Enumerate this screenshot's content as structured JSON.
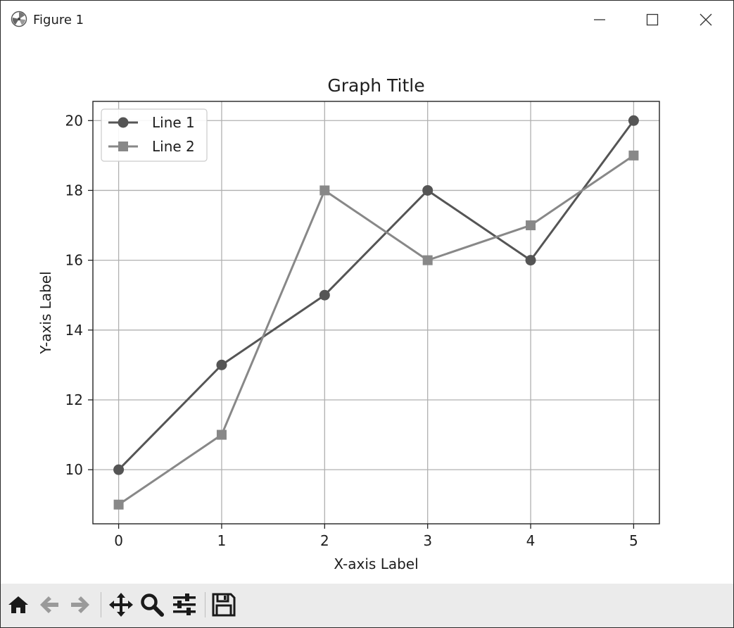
{
  "window": {
    "title": "Figure 1"
  },
  "toolbar": {
    "buttons": [
      {
        "name": "home-button",
        "icon": "home-icon"
      },
      {
        "name": "back-button",
        "icon": "arrow-left-icon"
      },
      {
        "name": "forward-button",
        "icon": "arrow-right-icon"
      },
      {
        "name": "pan-button",
        "icon": "move-arrows-icon"
      },
      {
        "name": "zoom-button",
        "icon": "magnifier-icon"
      },
      {
        "name": "configure-subplots-button",
        "icon": "sliders-icon"
      },
      {
        "name": "save-button",
        "icon": "floppy-disk-icon"
      }
    ]
  },
  "chart_data": {
    "type": "line",
    "title": "Graph Title",
    "xlabel": "X-axis Label",
    "ylabel": "Y-axis Label",
    "x": [
      0,
      1,
      2,
      3,
      4,
      5
    ],
    "xticks": [
      "0",
      "1",
      "2",
      "3",
      "4",
      "5"
    ],
    "yticks": [
      "10",
      "12",
      "14",
      "16",
      "18",
      "20"
    ],
    "xlim": [
      -0.25,
      5.25
    ],
    "ylim": [
      8.45,
      20.55
    ],
    "grid": true,
    "legend_location": "upper left",
    "series": [
      {
        "name": "Line 1",
        "values": [
          10,
          13,
          15,
          18,
          16,
          20
        ],
        "marker": "circle",
        "color": "#555555"
      },
      {
        "name": "Line 2",
        "values": [
          9,
          11,
          18,
          16,
          17,
          19
        ],
        "marker": "square",
        "color": "#888888"
      }
    ]
  }
}
